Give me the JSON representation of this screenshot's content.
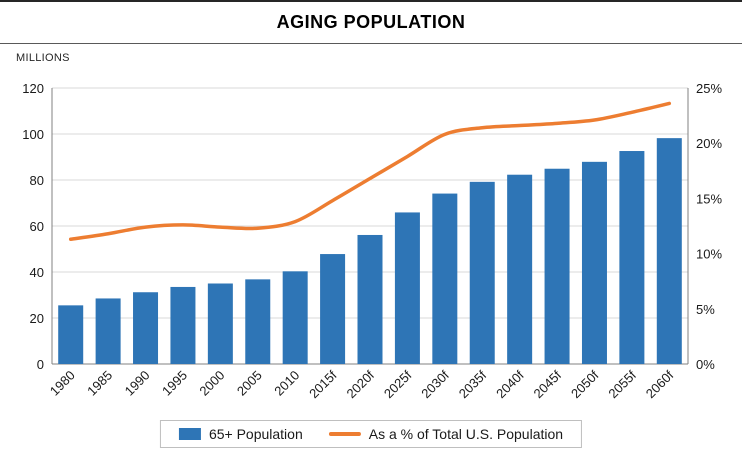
{
  "title": "AGING POPULATION",
  "axis_note": "MILLIONS",
  "legend": {
    "items": [
      {
        "label": "65+ Population",
        "swatch": "bar"
      },
      {
        "label": "As a % of Total U.S. Population",
        "swatch": "line"
      }
    ]
  },
  "chart_data": {
    "type": "bar",
    "subtype": "bar-and-line-combo",
    "title": "AGING POPULATION",
    "categories": [
      "1980",
      "1985",
      "1990",
      "1995",
      "2000",
      "2005",
      "2010",
      "2015f",
      "2020f",
      "2025f",
      "2030f",
      "2035f",
      "2040f",
      "2045f",
      "2050f",
      "2055f",
      "2060f"
    ],
    "series": [
      {
        "name": "65+ Population",
        "type": "bar",
        "axis": "left",
        "unit": "millions",
        "values": [
          25.5,
          28.5,
          31.2,
          33.5,
          35.0,
          36.8,
          40.3,
          47.8,
          56.1,
          65.9,
          74.1,
          79.2,
          82.3,
          84.9,
          87.9,
          92.6,
          98.2
        ]
      },
      {
        "name": "As a % of Total U.S. Population",
        "type": "line",
        "axis": "right",
        "unit": "percent",
        "values": [
          11.3,
          11.8,
          12.4,
          12.6,
          12.4,
          12.3,
          12.9,
          14.8,
          16.8,
          18.8,
          20.8,
          21.4,
          21.6,
          21.8,
          22.1,
          22.8,
          23.6
        ]
      }
    ],
    "left_axis": {
      "label": "MILLIONS",
      "min": 0,
      "max": 120,
      "tick_values": [
        0,
        20,
        40,
        60,
        80,
        100,
        120
      ],
      "tick_labels": [
        "0",
        "20",
        "40",
        "60",
        "80",
        "100",
        "120"
      ]
    },
    "right_axis": {
      "min": 0,
      "max": 25,
      "tick_values": [
        0,
        5,
        10,
        15,
        20,
        25
      ],
      "tick_labels": [
        "0%",
        "5%",
        "10%",
        "15%",
        "20%",
        "25%"
      ]
    },
    "grid": true,
    "legend_position": "bottom",
    "colors": {
      "bar": "#2E75B6",
      "line": "#ED7D31",
      "gridline": "#D9D9D9",
      "axis_line": "#808080",
      "text": "#1a1a1a"
    }
  }
}
